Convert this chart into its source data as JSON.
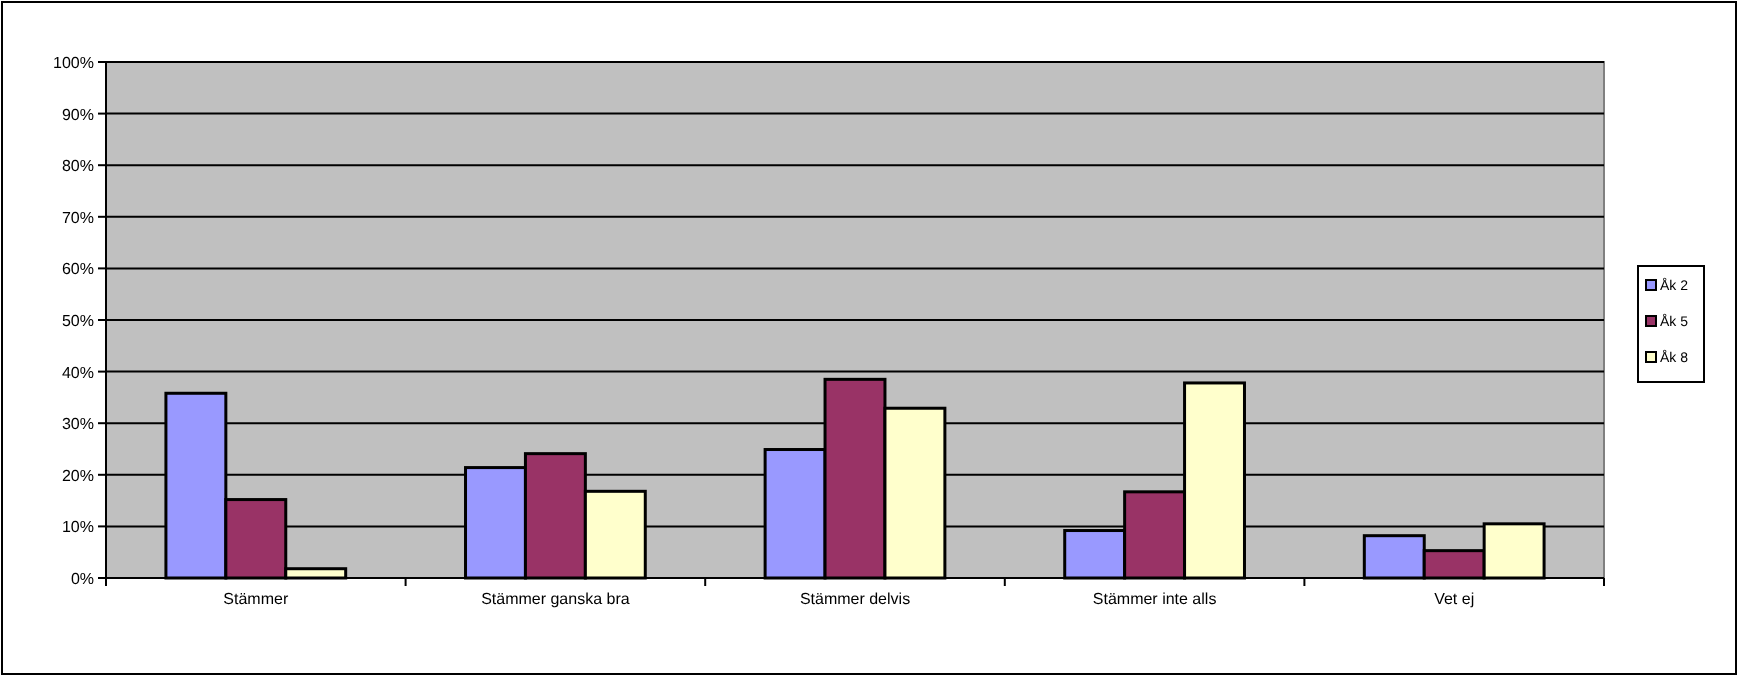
{
  "chart_data": {
    "type": "bar",
    "categories": [
      "Stämmer",
      "Stämmer ganska bra",
      "Stämmer delvis",
      "Stämmer inte alls",
      "Vet ej"
    ],
    "series": [
      {
        "name": "Åk 2",
        "color": "#9999ff",
        "values": [
          35.8,
          21.4,
          24.9,
          9.2,
          8.2
        ]
      },
      {
        "name": "Åk 5",
        "color": "#993366",
        "values": [
          15.2,
          24.1,
          38.5,
          16.7,
          5.3
        ]
      },
      {
        "name": "Åk 8",
        "color": "#ffffcc",
        "values": [
          1.8,
          16.8,
          32.9,
          37.8,
          10.5
        ]
      }
    ],
    "ylim": [
      0,
      100
    ],
    "yticks": [
      {
        "value": 0,
        "label": "0%"
      },
      {
        "value": 10,
        "label": "10%"
      },
      {
        "value": 20,
        "label": "20%"
      },
      {
        "value": 30,
        "label": "30%"
      },
      {
        "value": 40,
        "label": "40%"
      },
      {
        "value": 50,
        "label": "50%"
      },
      {
        "value": 60,
        "label": "60%"
      },
      {
        "value": 70,
        "label": "70%"
      },
      {
        "value": 80,
        "label": "80%"
      },
      {
        "value": 90,
        "label": "90%"
      },
      {
        "value": 100,
        "label": "100%"
      }
    ],
    "grid": "y",
    "legend": "right"
  }
}
